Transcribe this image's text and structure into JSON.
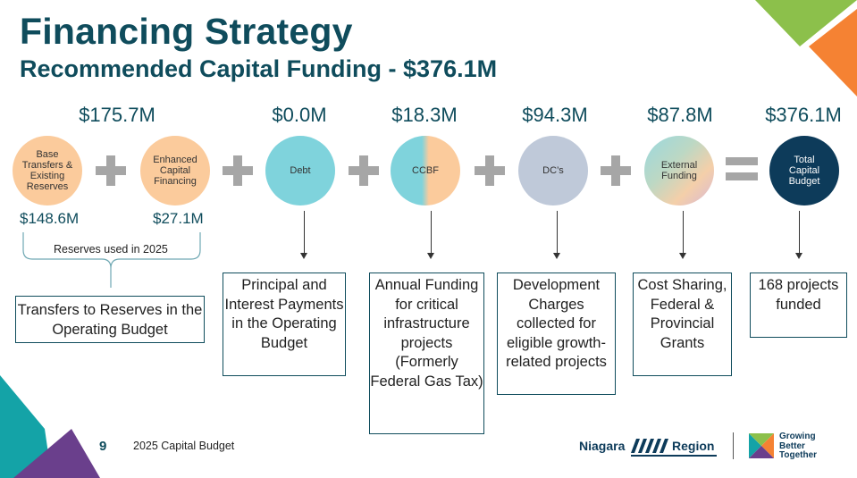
{
  "header": {
    "title": "Financing Strategy",
    "subtitle": "Recommended Capital Funding - $376.1M"
  },
  "amounts": {
    "reserves": "$175.7M",
    "debt": "$0.0M",
    "ccbf": "$18.3M",
    "dcs": "$94.3M",
    "external": "$87.8M",
    "total": "$376.1M"
  },
  "circles": {
    "base": "Base Transfers & Existing Reserves",
    "enhanced": "Enhanced Capital Financing",
    "debt": "Debt",
    "ccbf": "CCBF",
    "dcs": "DC’s",
    "external": "External Funding",
    "total": "Total Capital Budget"
  },
  "sub_amounts": {
    "base": "$148.6M",
    "enhanced": "$27.1M"
  },
  "reserves_note": "Reserves used in 2025",
  "boxes": {
    "reserves": "Transfers to Reserves in the Operating Budget",
    "debt": "Principal and Interest Payments in the Operating Budget",
    "ccbf": "Annual Funding for critical infrastructure projects (Formerly Federal Gas Tax)",
    "dcs": "Development Charges collected for eligible growth-related projects",
    "external": "Cost Sharing, Federal & Provincial Grants",
    "total": "168 projects funded"
  },
  "footer": {
    "page_number": "9",
    "label": "2025 Capital Budget",
    "logo_left_a": "Niagara",
    "logo_left_b": "Region",
    "logo_right_1": "Growing",
    "logo_right_2": "Better",
    "logo_right_3": "Together"
  },
  "colors": {
    "title": "#0f4c5c",
    "peach": "#fbcb9c",
    "teal_light": "#7fd3dc",
    "grey_blue": "#bfc9d9",
    "navy": "#0d3b5a",
    "green_corner": "#8cc04b",
    "orange_corner": "#f58233",
    "teal_corner": "#14a3a7",
    "purple_corner": "#6a3f8c"
  }
}
